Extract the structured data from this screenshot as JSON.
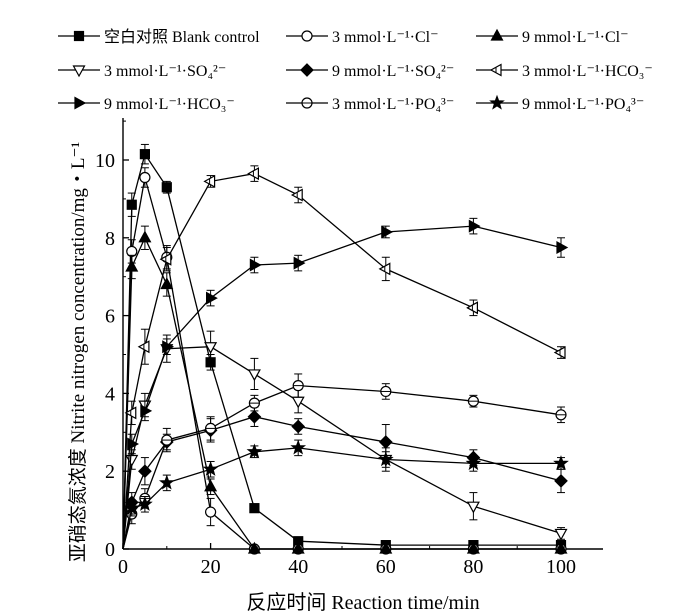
{
  "chart_data": {
    "type": "line",
    "title": "",
    "xlabel": "反应时间 Reaction time/min",
    "ylabel": "亚硝态氮浓度 Nitrite nitrogen concentration/mg・L⁻¹",
    "xlim": [
      0,
      110
    ],
    "ylim": [
      0,
      11
    ],
    "xticks": [
      0,
      20,
      40,
      60,
      80,
      100
    ],
    "yticks": [
      0,
      2,
      4,
      6,
      8,
      10
    ],
    "x": [
      0,
      2,
      5,
      10,
      20,
      30,
      40,
      60,
      80,
      100
    ],
    "series": [
      {
        "name": "空白对照 Blank control",
        "marker": "filled-square",
        "values": [
          0,
          8.85,
          10.15,
          9.3,
          4.8,
          1.05,
          0.2,
          0.1,
          0.1,
          0.1
        ],
        "errors": [
          0,
          0.3,
          0.25,
          0.15,
          0.2,
          0.1,
          0.1,
          0.05,
          0.05,
          0.05
        ]
      },
      {
        "name": "3 mmol·L⁻¹·Cl⁻",
        "marker": "open-circle",
        "values": [
          0,
          7.65,
          9.55,
          7.5,
          0.95,
          0.0,
          0.0,
          0.0,
          0.0,
          0.0
        ],
        "errors": [
          0,
          0.3,
          0.25,
          0.3,
          0.35,
          0.05,
          0.05,
          0.05,
          0.05,
          0.05
        ]
      },
      {
        "name": "9 mmol·L⁻¹·Cl⁻",
        "marker": "filled-triangle-up",
        "values": [
          0,
          7.25,
          8.0,
          6.8,
          1.6,
          0.0,
          0.0,
          0.0,
          0.0,
          0.0
        ],
        "errors": [
          0,
          0.3,
          0.3,
          0.3,
          0.2,
          0.05,
          0.05,
          0.05,
          0.05,
          0.05
        ]
      },
      {
        "name": "3 mmol·L⁻¹·SO₄²⁻",
        "marker": "open-triangle-down",
        "values": [
          0,
          2.3,
          3.7,
          5.15,
          5.2,
          4.5,
          3.8,
          2.3,
          1.1,
          0.4
        ],
        "errors": [
          0,
          0.25,
          0.3,
          0.35,
          0.4,
          0.4,
          0.3,
          0.3,
          0.35,
          0.15
        ]
      },
      {
        "name": "9 mmol·L⁻¹·SO₄²⁻",
        "marker": "filled-diamond",
        "values": [
          0,
          1.2,
          2.0,
          2.75,
          3.05,
          3.4,
          3.15,
          2.75,
          2.35,
          1.75
        ],
        "errors": [
          0,
          0.25,
          0.35,
          0.2,
          0.3,
          0.25,
          0.2,
          0.45,
          0.2,
          0.3
        ]
      },
      {
        "name": "3 mmol·L⁻¹·HCO₃⁻",
        "marker": "open-triangle-left",
        "values": [
          0,
          3.5,
          5.2,
          7.45,
          9.45,
          9.65,
          9.1,
          7.2,
          6.2,
          5.05
        ],
        "errors": [
          0,
          0.3,
          0.45,
          0.3,
          0.15,
          0.2,
          0.2,
          0.3,
          0.2,
          0.15
        ]
      },
      {
        "name": "9 mmol·L⁻¹·HCO₃⁻",
        "marker": "filled-triangle-right",
        "values": [
          0,
          2.7,
          3.55,
          5.2,
          6.45,
          7.3,
          7.35,
          8.15,
          8.3,
          7.75
        ],
        "errors": [
          0,
          0.25,
          0.25,
          0.2,
          0.2,
          0.2,
          0.2,
          0.15,
          0.2,
          0.25
        ]
      },
      {
        "name": "3 mmol·L⁻¹·PO₄³⁻",
        "marker": "open-circle-cross",
        "values": [
          0,
          0.9,
          1.3,
          2.8,
          3.1,
          3.75,
          4.2,
          4.05,
          3.8,
          3.45
        ],
        "errors": [
          0,
          0.25,
          0.25,
          0.3,
          0.3,
          0.2,
          0.3,
          0.2,
          0.15,
          0.2
        ]
      },
      {
        "name": "9 mmol·L⁻¹·PO₄³⁻",
        "marker": "filled-star",
        "values": [
          0,
          1.05,
          1.15,
          1.7,
          2.05,
          2.5,
          2.6,
          2.3,
          2.2,
          2.2
        ],
        "errors": [
          0,
          0.2,
          0.2,
          0.2,
          0.2,
          0.15,
          0.2,
          0.2,
          0.2,
          0.15
        ]
      }
    ]
  }
}
